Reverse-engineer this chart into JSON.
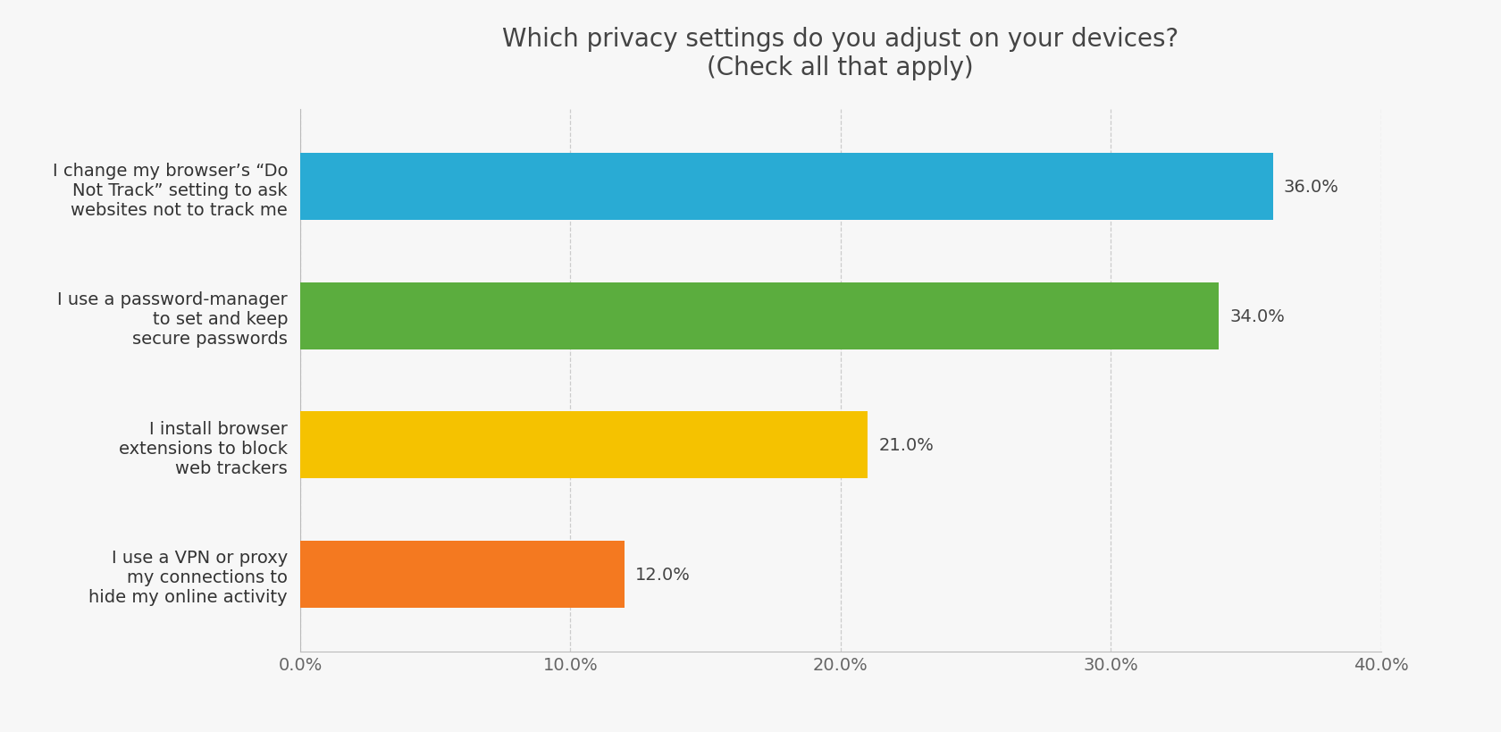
{
  "title": "Which privacy settings do you adjust on your devices?\n(Check all that apply)",
  "categories": [
    "I use a VPN or proxy\nmy connections to\nhide my online activity",
    "I install browser\nextensions to block\nweb trackers",
    "I use a password-manager\nto set and keep\nsecure passwords",
    "I change my browser’s “Do\nNot Track” setting to ask\nwebsites not to track me"
  ],
  "values": [
    12.0,
    21.0,
    34.0,
    36.0
  ],
  "bar_colors": [
    "#F47920",
    "#F5C200",
    "#5BAD3E",
    "#29ABD4"
  ],
  "value_labels": [
    "12.0%",
    "21.0%",
    "34.0%",
    "36.0%"
  ],
  "xlim": [
    0,
    40
  ],
  "xticks": [
    0,
    10,
    20,
    30,
    40
  ],
  "xtick_labels": [
    "0.0%",
    "10.0%",
    "20.0%",
    "30.0%",
    "40.0%"
  ],
  "background_color": "#f7f7f7",
  "title_fontsize": 20,
  "tick_label_fontsize": 14,
  "bar_label_fontsize": 14,
  "category_fontsize": 14,
  "title_color": "#444444",
  "tick_color": "#666666",
  "bar_label_color": "#444444",
  "category_label_color": "#333333",
  "grid_color": "#cccccc",
  "bar_height": 0.52,
  "bar_spacing": 1.0
}
